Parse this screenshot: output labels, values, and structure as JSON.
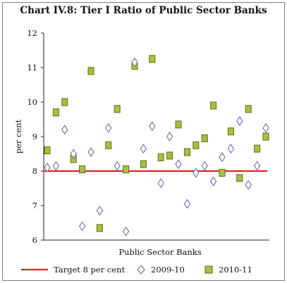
{
  "chart_data": {
    "type": "scatter",
    "title": "Chart IV.8: Tier I Ratio of Public Sector Banks",
    "xlabel": "Public Sector Banks",
    "ylabel": "per cent",
    "ylim": [
      6,
      12
    ],
    "yticks": [
      6,
      7,
      8,
      9,
      10,
      11,
      12
    ],
    "grid": false,
    "legend_position": "bottom",
    "n_banks": 26,
    "target": {
      "name": "Target 8 per cent",
      "value": 8,
      "color": "#d62728"
    },
    "series": [
      {
        "name": "2009-10",
        "marker": "diamond-open",
        "color": "#5b5fb0",
        "values": [
          8.1,
          8.15,
          9.2,
          8.5,
          6.4,
          8.55,
          6.85,
          9.25,
          8.15,
          6.25,
          11.15,
          8.65,
          9.3,
          7.65,
          9.0,
          8.2,
          7.05,
          7.95,
          8.15,
          7.7,
          8.4,
          8.65,
          9.45,
          7.6,
          8.15,
          9.25
        ]
      },
      {
        "name": "2010-11",
        "marker": "square-filled",
        "color": "#a4c23a",
        "values": [
          8.6,
          9.7,
          10.0,
          8.35,
          8.05,
          10.9,
          6.35,
          8.75,
          9.8,
          8.05,
          11.05,
          8.2,
          11.25,
          8.4,
          8.45,
          9.35,
          8.55,
          8.75,
          8.95,
          9.9,
          7.95,
          9.15,
          7.8,
          9.8,
          8.65,
          9.0
        ]
      }
    ]
  }
}
